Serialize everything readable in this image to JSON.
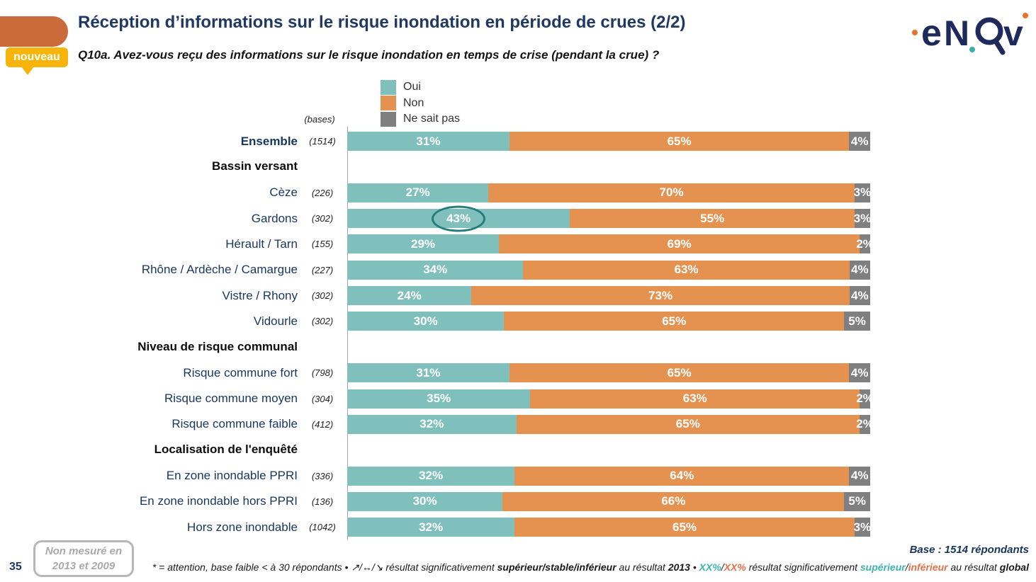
{
  "header": {
    "title": "Réception d’informations sur le risque inondation en période de crues (2/2)",
    "subtitle": "Q10a. Avez-vous reçu des informations sur le risque inondation en temps de crise (pendant la crue) ?",
    "badge": "nouveau",
    "brand": {
      "l1": "e",
      "l2": "N",
      "l3": "v"
    }
  },
  "legend": {
    "items": [
      {
        "label": "Oui",
        "color": "#7fc0bc"
      },
      {
        "label": "Non",
        "color": "#e5914f"
      },
      {
        "label": "Ne sait pas",
        "color": "#7f7f7f"
      }
    ]
  },
  "bases_header": "(bases)",
  "chart_data": {
    "type": "bar",
    "stacked": true,
    "orientation": "horizontal",
    "xlim": [
      0,
      100
    ],
    "series_names": [
      "Oui",
      "Non",
      "Ne sait pas"
    ],
    "colors": [
      "#7fc0bc",
      "#e5914f",
      "#7f7f7f"
    ],
    "rows": [
      {
        "type": "data",
        "label": "Ensemble",
        "base": "(1514)",
        "values": [
          31,
          65,
          4
        ],
        "bold": true
      },
      {
        "type": "section",
        "label": "Bassin versant"
      },
      {
        "type": "data",
        "label": "Cèze",
        "base": "(226)",
        "values": [
          27,
          70,
          3
        ]
      },
      {
        "type": "data",
        "label": "Gardons",
        "base": "(302)",
        "values": [
          43,
          55,
          3
        ],
        "circled": 0
      },
      {
        "type": "data",
        "label": "Hérault / Tarn",
        "base": "(155)",
        "values": [
          29,
          69,
          2
        ]
      },
      {
        "type": "data",
        "label": "Rhône / Ardèche / Camargue",
        "base": "(227)",
        "values": [
          34,
          63,
          4
        ]
      },
      {
        "type": "data",
        "label": "Vistre / Rhony",
        "base": "(302)",
        "values": [
          24,
          73,
          4
        ]
      },
      {
        "type": "data",
        "label": "Vidourle",
        "base": "(302)",
        "values": [
          30,
          65,
          5
        ]
      },
      {
        "type": "section",
        "label": "Niveau de risque communal"
      },
      {
        "type": "data",
        "label": "Risque commune fort",
        "base": "(798)",
        "values": [
          31,
          65,
          4
        ]
      },
      {
        "type": "data",
        "label": "Risque commune moyen",
        "base": "(304)",
        "values": [
          35,
          63,
          2
        ]
      },
      {
        "type": "data",
        "label": "Risque commune faible",
        "base": "(412)",
        "values": [
          32,
          65,
          2
        ]
      },
      {
        "type": "section",
        "label": "Localisation de l'enquêté"
      },
      {
        "type": "data",
        "label": "En zone inondable PPRI",
        "base": "(336)",
        "values": [
          32,
          64,
          4
        ]
      },
      {
        "type": "data",
        "label": "En zone inondable hors PPRI",
        "base": "(136)",
        "values": [
          30,
          66,
          5
        ]
      },
      {
        "type": "data",
        "label": "Hors zone inondable",
        "base": "(1042)",
        "values": [
          32,
          65,
          3
        ]
      }
    ]
  },
  "footer": {
    "page": "35",
    "not_measured_line1": "Non mesuré en",
    "not_measured_line2": "2013 et 2009",
    "base_note": "Base : 1514 répondants",
    "footnote_segments": [
      {
        "t": "* = attention, base faible < à 30 répondants • ",
        "c": ""
      },
      {
        "t": "↗/↔/↘",
        "c": ""
      },
      {
        "t": " résultat significativement ",
        "c": ""
      },
      {
        "t": "supérieur/stable/inférieur",
        "c": "fn-bold"
      },
      {
        "t": " au résultat ",
        "c": ""
      },
      {
        "t": "2013",
        "c": "fn-bold"
      },
      {
        "t": " • ",
        "c": ""
      },
      {
        "t": "XX%",
        "c": "fn-teal"
      },
      {
        "t": "/",
        "c": ""
      },
      {
        "t": "XX%",
        "c": "fn-orange"
      },
      {
        "t": " résultat significativement ",
        "c": ""
      },
      {
        "t": "supérieur",
        "c": "fn-teal"
      },
      {
        "t": "/",
        "c": ""
      },
      {
        "t": "inférieur",
        "c": "fn-orange"
      },
      {
        "t": " au résultat ",
        "c": ""
      },
      {
        "t": "global",
        "c": "fn-bold"
      }
    ]
  }
}
